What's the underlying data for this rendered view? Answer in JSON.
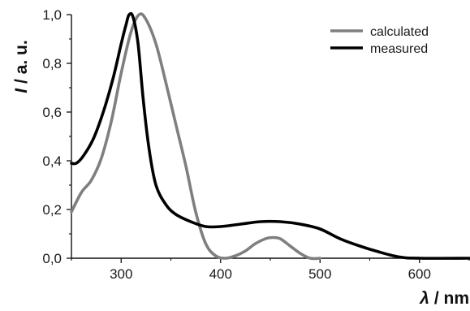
{
  "chart_data": {
    "type": "line",
    "xlabel_symbol": "λ",
    "xlabel_unit": "/ nm",
    "ylabel_symbol": "I",
    "ylabel_unit": "/ a. u.",
    "xlim": [
      250,
      650
    ],
    "ylim": [
      0.0,
      1.0
    ],
    "x_ticks": [
      300,
      400,
      500,
      600
    ],
    "x_tick_labels": [
      "300",
      "400",
      "500",
      "600"
    ],
    "y_ticks": [
      0.0,
      0.2,
      0.4,
      0.6,
      0.8,
      1.0
    ],
    "y_tick_labels": [
      "0,0",
      "0,2",
      "0,4",
      "0,6",
      "0,8",
      "1,0"
    ],
    "grid": false,
    "legend_position": "top-right",
    "series": [
      {
        "name": "calculated",
        "color": "#7f7f7f",
        "points": [
          [
            250,
            0.19
          ],
          [
            260,
            0.27
          ],
          [
            270,
            0.32
          ],
          [
            280,
            0.41
          ],
          [
            290,
            0.56
          ],
          [
            300,
            0.76
          ],
          [
            310,
            0.93
          ],
          [
            318,
            1.0
          ],
          [
            325,
            0.98
          ],
          [
            335,
            0.88
          ],
          [
            345,
            0.72
          ],
          [
            355,
            0.55
          ],
          [
            365,
            0.38
          ],
          [
            375,
            0.19
          ],
          [
            385,
            0.06
          ],
          [
            395,
            0.01
          ],
          [
            405,
            0.0
          ],
          [
            415,
            0.01
          ],
          [
            425,
            0.03
          ],
          [
            435,
            0.06
          ],
          [
            445,
            0.08
          ],
          [
            452,
            0.085
          ],
          [
            460,
            0.08
          ],
          [
            470,
            0.05
          ],
          [
            480,
            0.02
          ],
          [
            490,
            0.0
          ],
          [
            500,
            0.0
          ]
        ]
      },
      {
        "name": "measured",
        "color": "#000000",
        "points": [
          [
            250,
            0.39
          ],
          [
            255,
            0.39
          ],
          [
            262,
            0.42
          ],
          [
            272,
            0.49
          ],
          [
            282,
            0.6
          ],
          [
            292,
            0.74
          ],
          [
            300,
            0.88
          ],
          [
            305,
            0.96
          ],
          [
            308,
            1.0
          ],
          [
            312,
            0.99
          ],
          [
            317,
            0.88
          ],
          [
            322,
            0.66
          ],
          [
            328,
            0.45
          ],
          [
            335,
            0.3
          ],
          [
            345,
            0.22
          ],
          [
            355,
            0.18
          ],
          [
            370,
            0.15
          ],
          [
            385,
            0.13
          ],
          [
            400,
            0.13
          ],
          [
            420,
            0.14
          ],
          [
            440,
            0.15
          ],
          [
            460,
            0.15
          ],
          [
            480,
            0.14
          ],
          [
            500,
            0.12
          ],
          [
            520,
            0.08
          ],
          [
            540,
            0.05
          ],
          [
            560,
            0.025
          ],
          [
            580,
            0.005
          ],
          [
            600,
            0.0
          ],
          [
            650,
            0.0
          ]
        ]
      }
    ]
  }
}
